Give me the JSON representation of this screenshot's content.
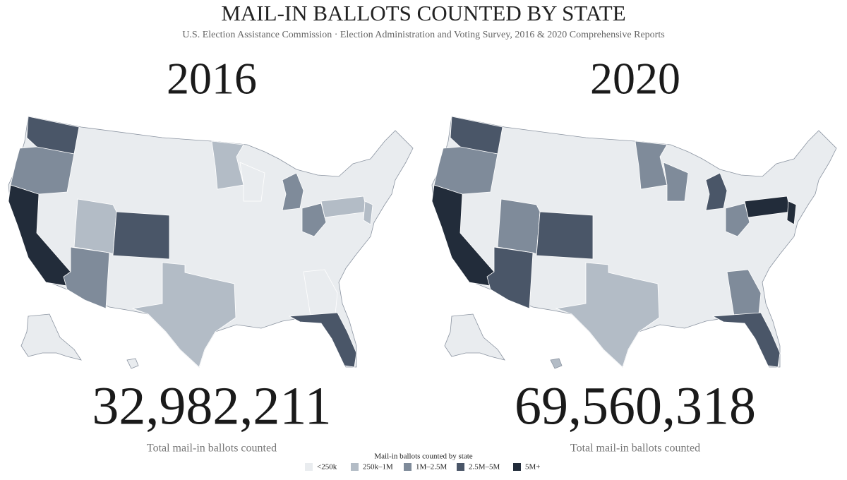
{
  "title": "MAIL-IN BALLOTS COUNTED BY STATE",
  "subtitle": "U.S. Election Assistance Commission · Election Administration and Voting Survey, 2016 & 2020 Comprehensive Reports",
  "panels": [
    {
      "year": "2016",
      "total": "32,982,211",
      "total_label": "Total mail-in ballots counted"
    },
    {
      "year": "2020",
      "total": "69,560,318",
      "total_label": "Total mail-in ballots counted"
    }
  ],
  "legend": {
    "title": "Mail-in ballots counted by state",
    "items": [
      {
        "label": "<250k",
        "color": "#e9ecef"
      },
      {
        "label": "250k–1M",
        "color": "#b3bcc6"
      },
      {
        "label": "1M–2.5M",
        "color": "#7f8b9a"
      },
      {
        "label": "2.5M–5M",
        "color": "#4a5668"
      },
      {
        "label": "5M+",
        "color": "#222c3a"
      }
    ]
  }
}
